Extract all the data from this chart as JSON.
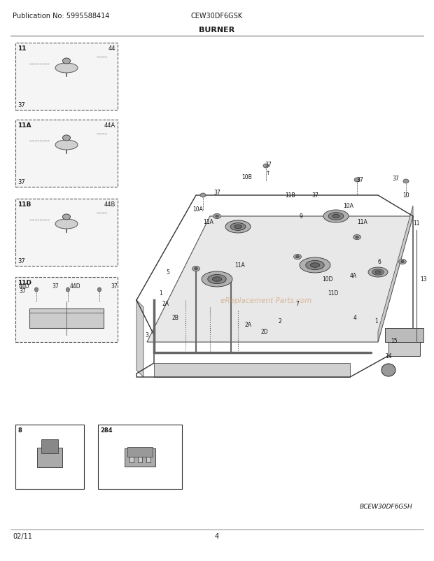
{
  "title": "BURNER",
  "pub_no": "Publication No: 5995588414",
  "model": "CEW30DF6GSK",
  "date": "02/11",
  "page": "4",
  "footer_right": "BCEW30DF6GSH",
  "bg_color": "#ffffff",
  "text_color": "#1a1a1a",
  "fig_width": 6.2,
  "fig_height": 8.03,
  "dpi": 100,
  "header_fontsize": 7,
  "title_fontsize": 8,
  "footer_fontsize": 7,
  "label_fontsize": 6,
  "watermark": "eReplacement Parts.com",
  "watermark_color": "#c8864a",
  "watermark_alpha": 0.5
}
